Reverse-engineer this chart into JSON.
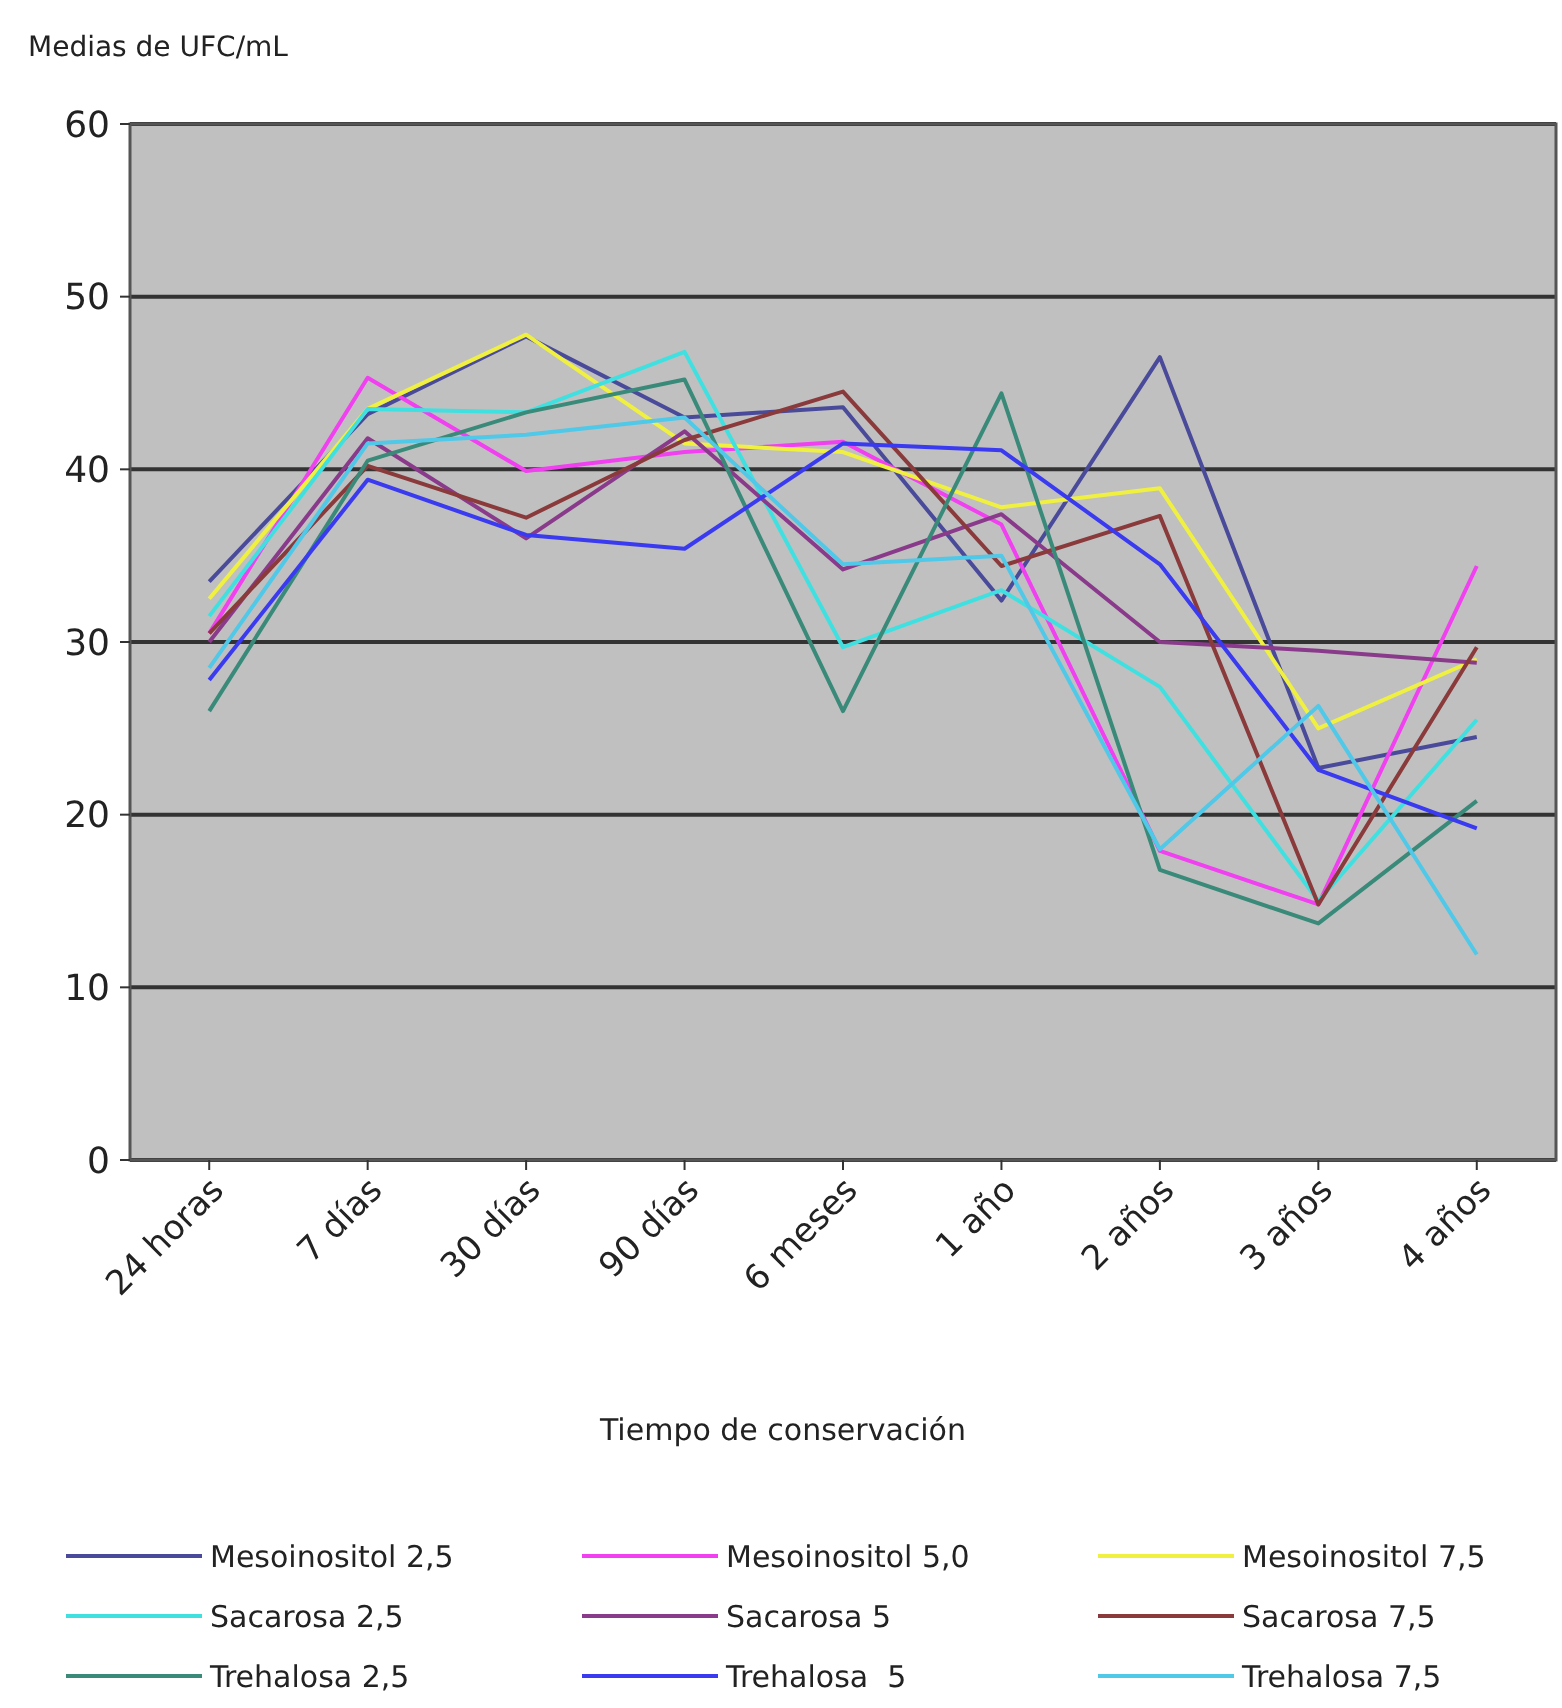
{
  "chart_data": {
    "type": "line",
    "ylabel": "Medias de UFC/mL",
    "xlabel": "Tiempo de conservación",
    "categories": [
      "24 horas",
      "7 días",
      "30 días",
      "90 días",
      "6 meses",
      "1 año",
      "2 años",
      "3 años",
      "4 años"
    ],
    "ylim": [
      0,
      60
    ],
    "yticks": [
      0,
      10,
      20,
      30,
      40,
      50,
      60
    ],
    "grid": "y",
    "legend": "bottom",
    "marker": "none",
    "series": [
      {
        "name": "Mesoinositol 2,5",
        "color": "#4a4a9a",
        "values": [
          33.5,
          43.2,
          47.7,
          43.0,
          43.6,
          32.4,
          46.5,
          22.7,
          24.5
        ]
      },
      {
        "name": "Mesoinositol 5,0",
        "color": "#f040f0",
        "values": [
          30.5,
          45.3,
          39.9,
          41.0,
          41.6,
          36.8,
          17.9,
          14.8,
          34.4
        ]
      },
      {
        "name": "Mesoinositol 7,5",
        "color": "#f0f040",
        "values": [
          32.5,
          43.5,
          47.8,
          41.5,
          41.0,
          37.8,
          38.9,
          25.0,
          29.0
        ]
      },
      {
        "name": "Sacarosa 2,5",
        "color": "#40e0e0",
        "values": [
          31.5,
          43.5,
          43.3,
          46.8,
          29.7,
          33.0,
          27.4,
          15.0,
          25.5
        ]
      },
      {
        "name": "Sacarosa 5",
        "color": "#8a3a8a",
        "values": [
          30.0,
          41.8,
          36.0,
          42.2,
          34.2,
          37.4,
          30.0,
          29.5,
          28.8
        ]
      },
      {
        "name": "Sacarosa 7,5",
        "color": "#8a3a3a",
        "values": [
          30.5,
          40.2,
          37.2,
          41.7,
          44.5,
          34.4,
          37.3,
          14.8,
          29.7
        ]
      },
      {
        "name": "Trehalosa 2,5",
        "color": "#3a8a7a",
        "values": [
          26.0,
          40.5,
          43.3,
          45.2,
          26.0,
          44.4,
          16.8,
          13.7,
          20.8
        ]
      },
      {
        "name": "Trehalosa  5",
        "color": "#3a3af0",
        "values": [
          27.8,
          39.4,
          36.2,
          35.4,
          41.5,
          41.1,
          34.5,
          22.6,
          19.2
        ]
      },
      {
        "name": "Trehalosa 7,5",
        "color": "#50c8e8",
        "values": [
          28.5,
          41.5,
          42.0,
          43.0,
          34.5,
          35.0,
          18.0,
          26.3,
          11.9
        ]
      }
    ]
  }
}
